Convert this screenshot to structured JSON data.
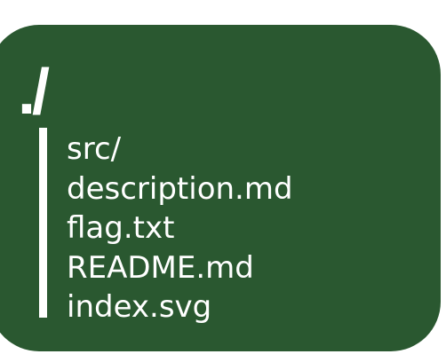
{
  "directory": {
    "path": "./",
    "entries": [
      "src/",
      "description.md",
      "flag.txt",
      "README.md",
      "index.svg"
    ]
  },
  "colors": {
    "card_background": "#2a5830",
    "text": "#ffffff",
    "page_background": "#ffffff"
  }
}
